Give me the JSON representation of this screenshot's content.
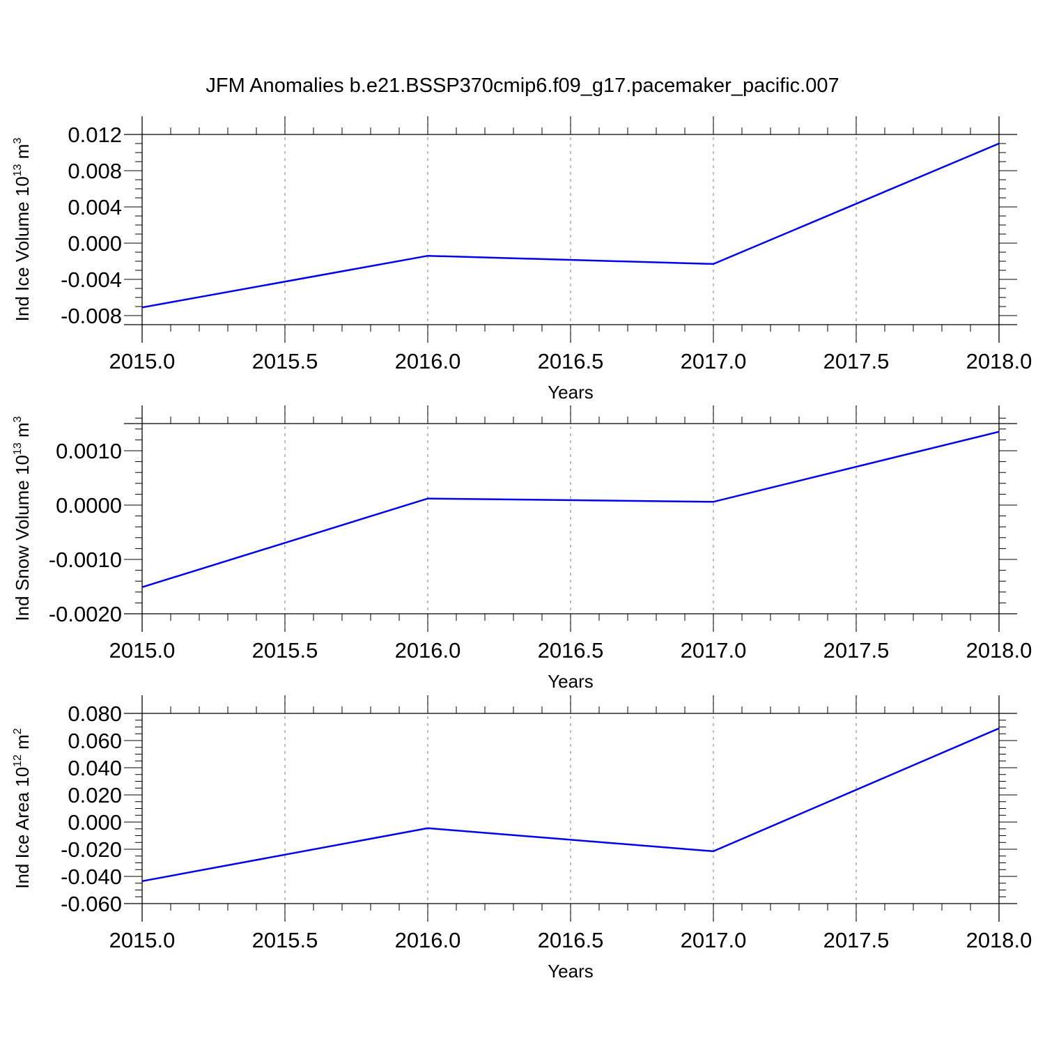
{
  "figure": {
    "title": "JFM Anomalies b.e21.BSSP370cmip6.f09_g17.pacemaker_pacific.007"
  },
  "chart_data": [
    {
      "type": "line",
      "xlabel": "Years",
      "ylabel": "Ind Ice Volume 10",
      "ylabel_exp": "13",
      "ylabel_unit": " m",
      "ylabel_unit_exp": "3",
      "xlim": [
        2015.0,
        2018.0
      ],
      "ylim": [
        -0.009,
        0.012
      ],
      "xticks": [
        2015.0,
        2015.5,
        2016.0,
        2016.5,
        2017.0,
        2017.5,
        2018.0
      ],
      "xtick_labels": [
        "2015.0",
        "2015.5",
        "2016.0",
        "2016.5",
        "2017.0",
        "2017.5",
        "2018.0"
      ],
      "yticks": [
        -0.008,
        -0.004,
        0.0,
        0.004,
        0.008,
        0.012
      ],
      "ytick_labels": [
        "-0.008",
        "-0.004",
        "0.000",
        "0.004",
        "0.008",
        "0.012"
      ],
      "y_minor_step": 0.001,
      "x_minor_step": 0.1,
      "grid": "vertical dashed at major x ticks",
      "color": "#0000ee",
      "series": [
        {
          "x": [
            2015.0,
            2016.0,
            2017.0,
            2018.0
          ],
          "values": [
            -0.0071,
            -0.0014,
            -0.0023,
            0.011
          ]
        }
      ]
    },
    {
      "type": "line",
      "xlabel": "Years",
      "ylabel": "Ind Snow Volume 10",
      "ylabel_exp": "13",
      "ylabel_unit": " m",
      "ylabel_unit_exp": "3",
      "xlim": [
        2015.0,
        2018.0
      ],
      "ylim": [
        -0.002,
        0.0015
      ],
      "xticks": [
        2015.0,
        2015.5,
        2016.0,
        2016.5,
        2017.0,
        2017.5,
        2018.0
      ],
      "xtick_labels": [
        "2015.0",
        "2015.5",
        "2016.0",
        "2016.5",
        "2017.0",
        "2017.5",
        "2018.0"
      ],
      "yticks": [
        -0.002,
        -0.001,
        0.0,
        0.001
      ],
      "ytick_labels": [
        "-0.0020",
        "-0.0010",
        "0.0000",
        "0.0010"
      ],
      "y_minor_step": 0.0002,
      "x_minor_step": 0.1,
      "grid": "vertical dashed at major x ticks",
      "color": "#0000ee",
      "series": [
        {
          "x": [
            2015.0,
            2016.0,
            2017.0,
            2018.0
          ],
          "values": [
            -0.00151,
            0.00012,
            6e-05,
            0.00135
          ]
        }
      ]
    },
    {
      "type": "line",
      "xlabel": "Years",
      "ylabel": "Ind Ice Area 10",
      "ylabel_exp": "12",
      "ylabel_unit": " m",
      "ylabel_unit_exp": "2",
      "xlim": [
        2015.0,
        2018.0
      ],
      "ylim": [
        -0.06,
        0.08
      ],
      "xticks": [
        2015.0,
        2015.5,
        2016.0,
        2016.5,
        2017.0,
        2017.5,
        2018.0
      ],
      "xtick_labels": [
        "2015.0",
        "2015.5",
        "2016.0",
        "2016.5",
        "2017.0",
        "2017.5",
        "2018.0"
      ],
      "yticks": [
        -0.06,
        -0.04,
        -0.02,
        0.0,
        0.02,
        0.04,
        0.06,
        0.08
      ],
      "ytick_labels": [
        "-0.060",
        "-0.040",
        "-0.020",
        "0.000",
        "0.020",
        "0.040",
        "0.060",
        "0.080"
      ],
      "y_minor_step": 0.005,
      "x_minor_step": 0.1,
      "grid": "vertical dashed at major x ticks",
      "color": "#0000ee",
      "series": [
        {
          "x": [
            2015.0,
            2016.0,
            2017.0,
            2018.0
          ],
          "values": [
            -0.0435,
            -0.0045,
            -0.0215,
            0.069
          ]
        }
      ]
    }
  ]
}
